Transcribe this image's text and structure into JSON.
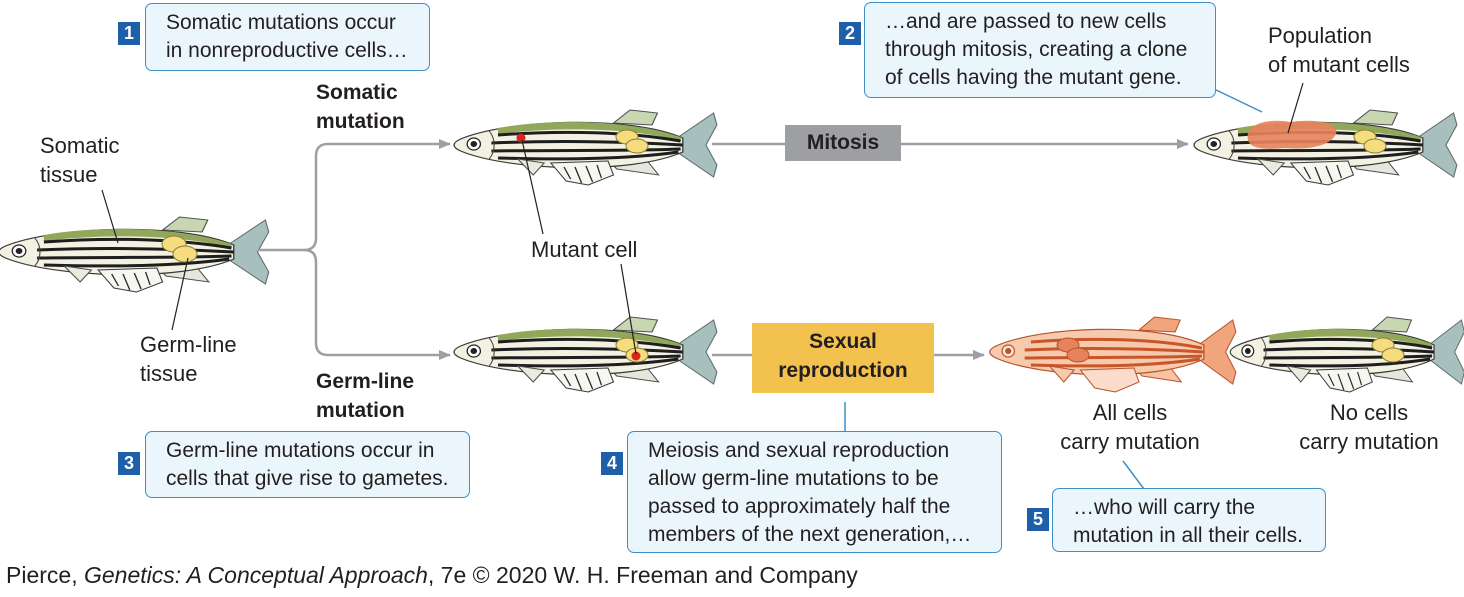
{
  "callouts": {
    "c1": {
      "step": "1",
      "lines": [
        "Somatic mutations occur",
        "in nonreproductive cells…"
      ]
    },
    "c2": {
      "step": "2",
      "lines": [
        "…and are passed to new cells",
        "through mitosis, creating a clone",
        "of cells having the mutant gene."
      ]
    },
    "c3": {
      "step": "3",
      "lines": [
        "Germ-line mutations occur in",
        "cells that give rise to gametes."
      ]
    },
    "c4": {
      "step": "4",
      "lines": [
        "Meiosis and sexual reproduction",
        "allow germ-line mutations to be",
        "passed to approximately half the",
        "members of the next generation,…"
      ]
    },
    "c5": {
      "step": "5",
      "lines": [
        "…who will carry the",
        "mutation in all their cells."
      ]
    }
  },
  "labels": {
    "somatic_tissue": [
      "Somatic",
      "tissue"
    ],
    "germline_tissue": [
      "Germ-line",
      "tissue"
    ],
    "somatic_mutation": [
      "Somatic",
      "mutation"
    ],
    "germline_mutation": [
      "Germ-line",
      "mutation"
    ],
    "mutant_cell": "Mutant cell",
    "population": [
      "Population",
      "of mutant cells"
    ],
    "all_cells": [
      "All cells",
      "carry mutation"
    ],
    "no_cells": [
      "No cells",
      "carry mutation"
    ]
  },
  "processes": {
    "mitosis": "Mitosis",
    "sexual": [
      "Sexual",
      "reproduction"
    ]
  },
  "credit": {
    "author": "Pierce, ",
    "book": "Genetics: A Conceptual Approach",
    "rest": ", 7e © 2020 W. H. Freeman and Company"
  },
  "colors": {
    "callout_fill": "#eaf6fc",
    "callout_border": "#3d8fc6",
    "step_badge": "#1d5fa8",
    "mitosis_box": "#9d9fa2",
    "sexual_box": "#f2c14e",
    "arrow": "#9d9fa2",
    "mutant_fish": "#e8825c",
    "gonad": "#f4dc7f",
    "mutant_dot": "#d7261e"
  }
}
